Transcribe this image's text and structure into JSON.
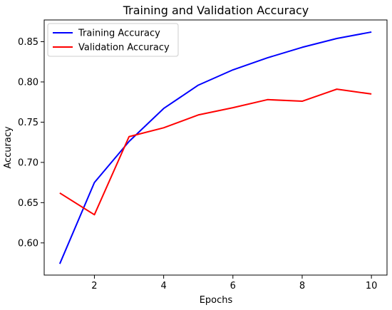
{
  "chart_data": {
    "type": "line",
    "title": "Training and Validation Accuracy",
    "xlabel": "Epochs",
    "ylabel": "Accuracy",
    "x": [
      1,
      2,
      3,
      4,
      5,
      6,
      7,
      8,
      9,
      10
    ],
    "xticks": [
      2,
      4,
      6,
      8,
      10
    ],
    "yticks": [
      0.6,
      0.65,
      0.7,
      0.75,
      0.8,
      0.85
    ],
    "xlim": [
      0.55,
      10.45
    ],
    "ylim": [
      0.56,
      0.877
    ],
    "grid": false,
    "legend_position": "top-left",
    "series": [
      {
        "name": "Training Accuracy",
        "color": "#0000ff",
        "values": [
          0.574,
          0.675,
          0.726,
          0.767,
          0.796,
          0.815,
          0.83,
          0.843,
          0.854,
          0.862
        ]
      },
      {
        "name": "Validation Accuracy",
        "color": "#ff0000",
        "values": [
          0.662,
          0.635,
          0.732,
          0.743,
          0.759,
          0.768,
          0.778,
          0.776,
          0.791,
          0.785
        ]
      }
    ]
  }
}
